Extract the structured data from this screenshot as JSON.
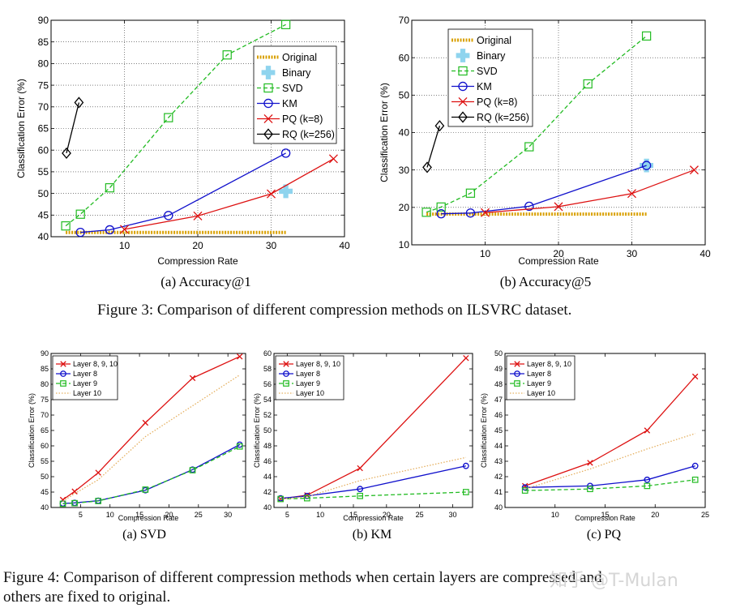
{
  "figure3_caption": "Figure 3: Comparison of different compression methods on ILSVRC dataset.",
  "figure4_caption_line1": "Figure 4: Comparison of different compression methods when certain layers are compressed and",
  "figure4_caption_line2": "others are fixed to original.",
  "watermark": "知乎 @T-Mulan",
  "chart_data": [
    {
      "type": "line",
      "subcaption": "(a) Accuracy@1",
      "xlabel": "Compression Rate",
      "ylabel": "Classification Error (%)",
      "xlim": [
        0,
        40
      ],
      "ylim": [
        40,
        90
      ],
      "xticks": [
        10,
        20,
        30,
        40
      ],
      "yticks": [
        40,
        45,
        50,
        55,
        60,
        65,
        70,
        75,
        80,
        85,
        90
      ],
      "grid": "dotted",
      "legend": "top-right",
      "series": [
        {
          "name": "Original",
          "color": "#d9a000",
          "style": "dotted-thick",
          "marker": "none",
          "x": [
            2,
            32
          ],
          "y": [
            41.0,
            41.0
          ]
        },
        {
          "name": "Binary",
          "color": "#8fd4ee",
          "style": "none",
          "marker": "plus-big",
          "x": [
            32
          ],
          "y": [
            50.5
          ]
        },
        {
          "name": "SVD",
          "color": "#22bb22",
          "style": "dashed",
          "marker": "square",
          "x": [
            2,
            4,
            8,
            16,
            24,
            32
          ],
          "y": [
            42.5,
            45.2,
            51.3,
            67.5,
            82.0,
            89.0
          ]
        },
        {
          "name": "KM",
          "color": "#1010cc",
          "style": "solid",
          "marker": "circle",
          "x": [
            4,
            8,
            16,
            32
          ],
          "y": [
            41.0,
            41.6,
            44.9,
            59.3
          ]
        },
        {
          "name": "PQ (k=8)",
          "color": "#dd1111",
          "style": "solid",
          "marker": "x",
          "x": [
            10,
            20,
            30,
            38.5
          ],
          "y": [
            41.7,
            44.8,
            49.9,
            58.0
          ]
        },
        {
          "name": "RQ (k=256)",
          "color": "#000000",
          "style": "solid",
          "marker": "diamond",
          "x": [
            2.1,
            3.8
          ],
          "y": [
            59.3,
            71.0
          ]
        }
      ]
    },
    {
      "type": "line",
      "subcaption": "(b) Accuracy@5",
      "xlabel": "Compression Rate",
      "ylabel": "Classification Error (%)",
      "xlim": [
        0,
        40
      ],
      "ylim": [
        10,
        70
      ],
      "xticks": [
        10,
        20,
        30,
        40
      ],
      "yticks": [
        10,
        20,
        30,
        40,
        50,
        60,
        70
      ],
      "grid": "dotted",
      "legend": "top-left",
      "series": [
        {
          "name": "Original",
          "color": "#d9a000",
          "style": "dotted-thick",
          "marker": "none",
          "x": [
            2,
            32
          ],
          "y": [
            18.2,
            18.2
          ]
        },
        {
          "name": "Binary",
          "color": "#8fd4ee",
          "style": "none",
          "marker": "plus-big",
          "x": [
            32
          ],
          "y": [
            31.2
          ]
        },
        {
          "name": "SVD",
          "color": "#22bb22",
          "style": "dashed",
          "marker": "square",
          "x": [
            2,
            4,
            8,
            16,
            24,
            32
          ],
          "y": [
            18.7,
            20.1,
            23.8,
            36.2,
            53.0,
            65.8
          ]
        },
        {
          "name": "KM",
          "color": "#1010cc",
          "style": "solid",
          "marker": "circle",
          "x": [
            4,
            8,
            16,
            32
          ],
          "y": [
            18.3,
            18.5,
            20.3,
            31.2
          ]
        },
        {
          "name": "PQ (k=8)",
          "color": "#dd1111",
          "style": "solid",
          "marker": "x",
          "x": [
            10,
            20,
            30,
            38.5
          ],
          "y": [
            18.6,
            20.2,
            23.7,
            30.0
          ]
        },
        {
          "name": "RQ (k=256)",
          "color": "#000000",
          "style": "solid",
          "marker": "diamond",
          "x": [
            2.1,
            3.8
          ],
          "y": [
            30.7,
            41.8
          ]
        }
      ]
    },
    {
      "type": "line",
      "subcaption": "(a) SVD",
      "xlabel": "Compression Rate",
      "ylabel": "Classification Error (%)",
      "xlim": [
        0,
        33
      ],
      "ylim": [
        40,
        90
      ],
      "xticks": [
        5,
        10,
        15,
        20,
        25,
        30
      ],
      "yticks": [
        40,
        45,
        50,
        55,
        60,
        65,
        70,
        75,
        80,
        85,
        90
      ],
      "grid": "none",
      "legend": "top-left",
      "series": [
        {
          "name": "Layer 8, 9, 10",
          "color": "#dd1111",
          "style": "solid",
          "marker": "x",
          "x": [
            2,
            4,
            8,
            16,
            24,
            32
          ],
          "y": [
            42.5,
            45.2,
            51.3,
            67.5,
            82.0,
            89.0
          ]
        },
        {
          "name": "Layer 8",
          "color": "#1010cc",
          "style": "solid",
          "marker": "circle",
          "x": [
            2,
            4,
            8,
            16,
            24,
            32
          ],
          "y": [
            41.3,
            41.5,
            42.2,
            45.6,
            52.3,
            60.4
          ]
        },
        {
          "name": "Layer 9",
          "color": "#22bb22",
          "style": "dashed",
          "marker": "square",
          "x": [
            2,
            4,
            8,
            16,
            24,
            32
          ],
          "y": [
            41.2,
            41.4,
            42.1,
            45.8,
            52.1,
            59.8
          ]
        },
        {
          "name": "Layer 10",
          "color": "#e5b060",
          "style": "dotted",
          "marker": "none",
          "x": [
            2,
            4,
            8,
            16,
            24,
            32
          ],
          "y": [
            42.0,
            44.5,
            49.0,
            63.0,
            73.0,
            83.0
          ]
        }
      ]
    },
    {
      "type": "line",
      "subcaption": "(b) KM",
      "xlabel": "Compression Rate",
      "ylabel": "Classification Error (%)",
      "xlim": [
        3,
        33
      ],
      "ylim": [
        40,
        60
      ],
      "xticks": [
        5,
        10,
        15,
        20,
        25,
        30
      ],
      "yticks": [
        40,
        42,
        44,
        46,
        48,
        50,
        52,
        54,
        56,
        58,
        60
      ],
      "grid": "none",
      "legend": "top-left",
      "series": [
        {
          "name": "Layer 8, 9, 10",
          "color": "#dd1111",
          "style": "solid",
          "marker": "x",
          "x": [
            4,
            8,
            16,
            32
          ],
          "y": [
            41.1,
            41.6,
            45.1,
            59.4
          ]
        },
        {
          "name": "Layer 8",
          "color": "#1010cc",
          "style": "solid",
          "marker": "circle",
          "x": [
            4,
            8,
            16,
            32
          ],
          "y": [
            41.2,
            41.5,
            42.4,
            45.4
          ]
        },
        {
          "name": "Layer 9",
          "color": "#22bb22",
          "style": "dashed",
          "marker": "square",
          "x": [
            4,
            8,
            16,
            32
          ],
          "y": [
            41.1,
            41.2,
            41.5,
            42.0
          ]
        },
        {
          "name": "Layer 10",
          "color": "#e5b060",
          "style": "dotted",
          "marker": "none",
          "x": [
            4,
            8,
            16,
            32
          ],
          "y": [
            41.1,
            41.4,
            43.5,
            46.5
          ]
        }
      ]
    },
    {
      "type": "line",
      "subcaption": "(c) PQ",
      "xlabel": "Compression Rate",
      "ylabel": "Classification Error (%)",
      "xlim": [
        5,
        25
      ],
      "ylim": [
        40,
        50
      ],
      "xticks": [
        10,
        15,
        20,
        25
      ],
      "yticks": [
        40,
        41,
        42,
        43,
        44,
        45,
        46,
        47,
        48,
        49,
        50
      ],
      "grid": "none",
      "legend": "top-left",
      "series": [
        {
          "name": "Layer 8, 9, 10",
          "color": "#dd1111",
          "style": "solid",
          "marker": "x",
          "x": [
            7,
            13.5,
            19.2,
            24
          ],
          "y": [
            41.4,
            42.9,
            45.0,
            48.5
          ]
        },
        {
          "name": "Layer 8",
          "color": "#1010cc",
          "style": "solid",
          "marker": "circle",
          "x": [
            7,
            13.5,
            19.2,
            24
          ],
          "y": [
            41.3,
            41.4,
            41.8,
            42.7
          ]
        },
        {
          "name": "Layer 9",
          "color": "#22bb22",
          "style": "dashed",
          "marker": "square",
          "x": [
            7,
            13.5,
            19.2,
            24
          ],
          "y": [
            41.1,
            41.2,
            41.4,
            41.8
          ]
        },
        {
          "name": "Layer 10",
          "color": "#e5b060",
          "style": "dotted",
          "marker": "none",
          "x": [
            7,
            13.5,
            19.2,
            24
          ],
          "y": [
            41.2,
            42.5,
            43.8,
            44.8
          ]
        }
      ]
    }
  ]
}
